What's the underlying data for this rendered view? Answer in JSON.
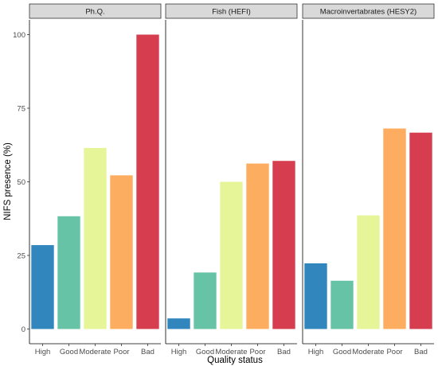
{
  "chart_data": {
    "type": "bar",
    "xlabel": "Quality status",
    "ylabel": "NIFS presence (%)",
    "ylim": [
      -5,
      105
    ],
    "yticks": [
      0,
      25,
      50,
      75,
      100
    ],
    "categories": [
      "High",
      "Good",
      "Moderate",
      "Poor",
      "Bad"
    ],
    "colors": [
      "#3186be",
      "#66c3a6",
      "#e6f598",
      "#fcad60",
      "#d63e50"
    ],
    "grid": false,
    "legend": "none",
    "panels": [
      {
        "title": "Ph.Q.",
        "values": [
          28.5,
          38.3,
          61.5,
          52.2,
          100
        ]
      },
      {
        "title": "Fish (HEFI)",
        "values": [
          3.6,
          19.2,
          50.0,
          56.2,
          57.1
        ]
      },
      {
        "title": "Macroinvertabrates (HESY2)",
        "values": [
          22.3,
          16.4,
          38.6,
          68.1,
          66.7
        ]
      }
    ]
  }
}
